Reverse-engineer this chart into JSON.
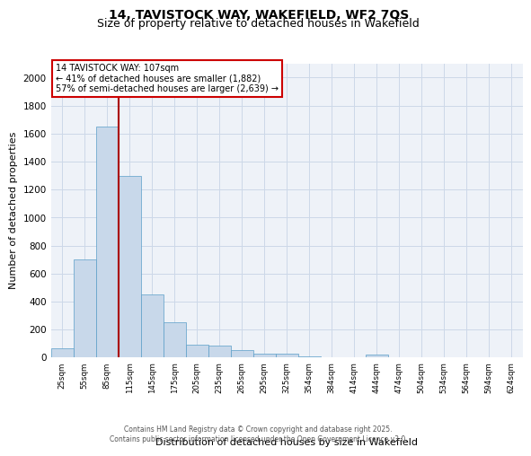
{
  "title_line1": "14, TAVISTOCK WAY, WAKEFIELD, WF2 7QS",
  "title_line2": "Size of property relative to detached houses in Wakefield",
  "xlabel": "Distribution of detached houses by size in Wakefield",
  "ylabel": "Number of detached properties",
  "annotation_title": "14 TAVISTOCK WAY: 107sqm",
  "annotation_line2": "← 41% of detached houses are smaller (1,882)",
  "annotation_line3": "57% of semi-detached houses are larger (2,639) →",
  "bar_color": "#c8d8ea",
  "bar_edge_color": "#5a9ec8",
  "grid_color": "#ccd8e8",
  "background_color": "#eef2f8",
  "red_line_color": "#aa0000",
  "categories": [
    "25sqm",
    "55sqm",
    "85sqm",
    "115sqm",
    "145sqm",
    "175sqm",
    "205sqm",
    "235sqm",
    "265sqm",
    "295sqm",
    "325sqm",
    "354sqm",
    "384sqm",
    "414sqm",
    "444sqm",
    "474sqm",
    "504sqm",
    "534sqm",
    "564sqm",
    "594sqm",
    "624sqm"
  ],
  "values": [
    65,
    700,
    1650,
    1300,
    450,
    250,
    90,
    85,
    50,
    30,
    25,
    5,
    0,
    0,
    20,
    0,
    0,
    0,
    0,
    0,
    0
  ],
  "red_line_x": 2.5,
  "ylim": [
    0,
    2100
  ],
  "yticks": [
    0,
    200,
    400,
    600,
    800,
    1000,
    1200,
    1400,
    1600,
    1800,
    2000
  ],
  "footer_line1": "Contains HM Land Registry data © Crown copyright and database right 2025.",
  "footer_line2": "Contains public sector information licensed under the Open Government Licence v3.0.",
  "annotation_box_color": "#ffffff",
  "annotation_box_edge": "#cc0000"
}
